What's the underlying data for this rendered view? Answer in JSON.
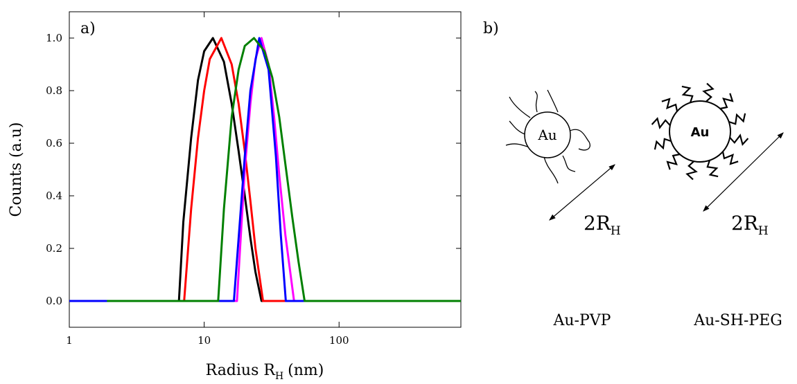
{
  "chart_data": {
    "type": "line",
    "annotation": "a)",
    "y_label": "Counts (a.u)",
    "x_label": "Radius R",
    "x_label_sub": "H",
    "x_label_tail": "(nm)",
    "x_scale": "log",
    "xlim": [
      1,
      800
    ],
    "xticks": [
      1,
      10,
      100
    ],
    "ylim": [
      -0.1,
      1.1
    ],
    "yticks": [
      {
        "value": 0,
        "label": "0.0"
      },
      0.2,
      0.4,
      0.6,
      0.8,
      {
        "value": 1,
        "label": "1.0"
      }
    ],
    "series": [
      {
        "color": "#000000",
        "x": [
          1,
          6.5,
          7,
          8,
          9,
          10,
          11.6,
          14,
          16,
          18,
          20,
          22,
          24,
          26.6,
          800
        ],
        "values": [
          0,
          0,
          0.3,
          0.62,
          0.84,
          0.95,
          1.0,
          0.91,
          0.75,
          0.57,
          0.4,
          0.24,
          0.11,
          0,
          0
        ]
      },
      {
        "color": "#ff0000",
        "x": [
          1.7,
          7.1,
          8,
          9,
          10,
          11,
          13.4,
          16,
          18,
          20,
          22,
          24,
          27.3,
          800
        ],
        "values": [
          0,
          0,
          0.35,
          0.62,
          0.8,
          0.92,
          1.0,
          0.9,
          0.75,
          0.57,
          0.38,
          0.2,
          0,
          0
        ]
      },
      {
        "color": "#ff00ff",
        "x": [
          1,
          17.5,
          20,
          22,
          24,
          26.6,
          30,
          33,
          36,
          40,
          46.4,
          800
        ],
        "values": [
          0,
          0,
          0.5,
          0.75,
          0.92,
          1.0,
          0.9,
          0.7,
          0.48,
          0.25,
          0,
          0
        ]
      },
      {
        "color": "#0000ff",
        "x": [
          1,
          16.6,
          20,
          22,
          25.6,
          30,
          34,
          37,
          40.3,
          800
        ],
        "values": [
          0,
          0,
          0.55,
          0.8,
          1.0,
          0.88,
          0.55,
          0.25,
          0,
          0
        ]
      },
      {
        "color": "#008000",
        "x": [
          1.9,
          12.7,
          14,
          16,
          18,
          20,
          23.4,
          28,
          32,
          36,
          40,
          45,
          50,
          55.5,
          800
        ],
        "values": [
          0,
          0,
          0.35,
          0.7,
          0.88,
          0.97,
          1.0,
          0.95,
          0.85,
          0.7,
          0.52,
          0.32,
          0.15,
          0,
          0
        ]
      }
    ]
  },
  "diagram": {
    "panel_label": "b)",
    "core_left": "Au",
    "core_right": "Au",
    "size_label": "2R",
    "size_label_sub": "H",
    "caption_left": "Au-PVP",
    "caption_right": "Au-SH-PEG"
  }
}
